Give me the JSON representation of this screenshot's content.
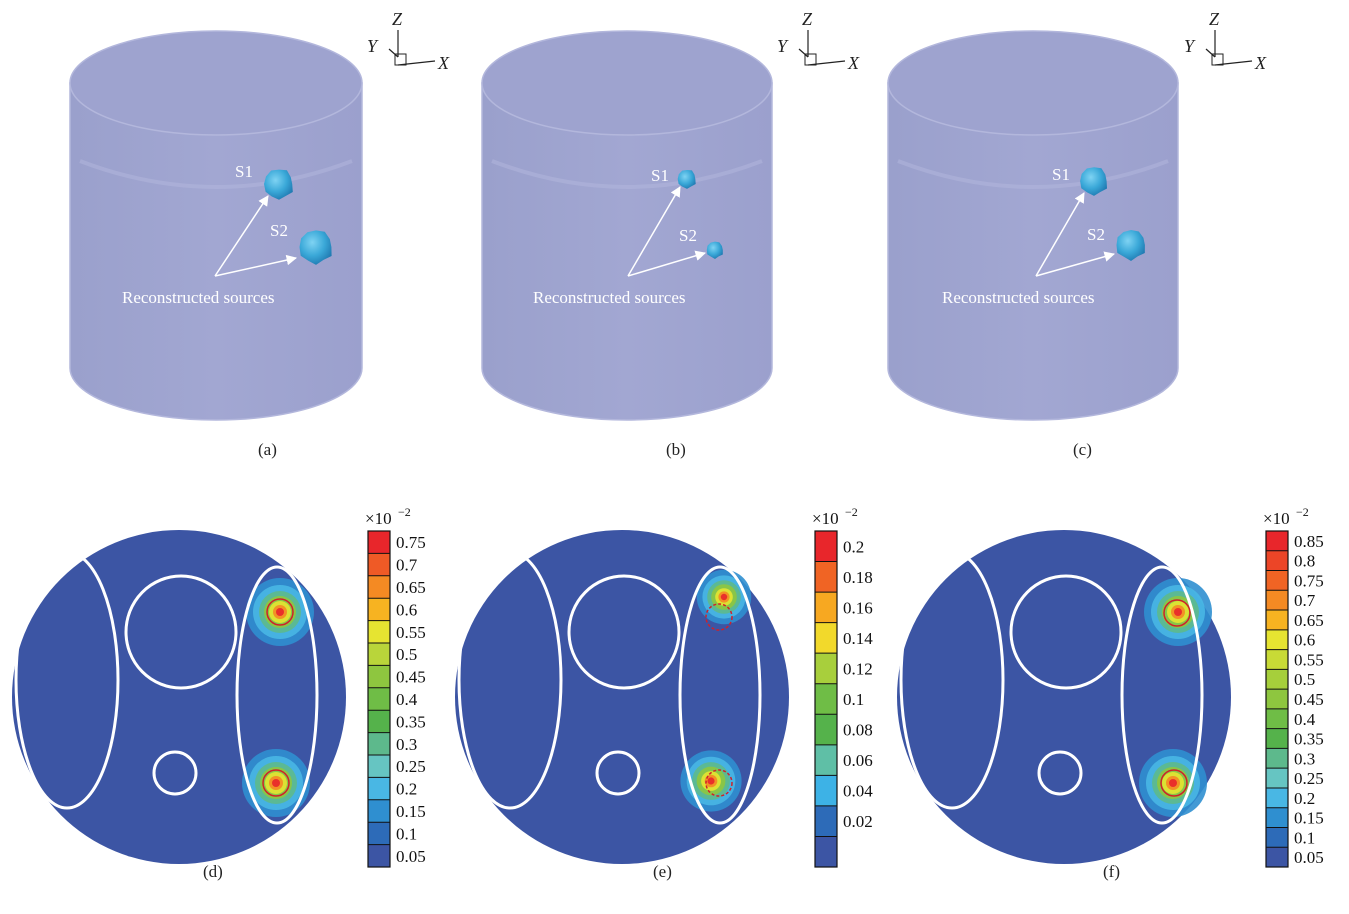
{
  "colors": {
    "cylinder_body": "#a2a7d2",
    "cylinder_edge": "#b3b7dc",
    "cylinder_top": "#9ea3cf",
    "source_blob": "#3aa8d8",
    "source_blob_dark": "#1f78b0",
    "slice_background": "#3c55a4",
    "contour_lines": "#ffffff",
    "true_source_circle": "#d0202a",
    "annotation": "#ffffff"
  },
  "axes_labels": {
    "x": "X",
    "y": "Y",
    "z": "Z"
  },
  "panels_3d": [
    {
      "caption": "(a)",
      "s1_label": "S1",
      "s2_label": "S2",
      "annotation": "Reconstructed sources"
    },
    {
      "caption": "(b)",
      "s1_label": "S1",
      "s2_label": "S2",
      "annotation": "Reconstructed sources"
    },
    {
      "caption": "(c)",
      "s1_label": "S1",
      "s2_label": "S2",
      "annotation": "Reconstructed sources"
    }
  ],
  "panels_2d": [
    {
      "caption": "(d)",
      "colorbar_multiplier": "×10",
      "colorbar_exponent": "−2",
      "colorbar_ticks": [
        "0.75",
        "0.7",
        "0.65",
        "0.6",
        "0.55",
        "0.5",
        "0.45",
        "0.4",
        "0.35",
        "0.3",
        "0.25",
        "0.2",
        "0.15",
        "0.1",
        "0.05"
      ],
      "colorbar_colors": [
        "#e8262b",
        "#ef5a26",
        "#f48a23",
        "#f7b321",
        "#e6e431",
        "#b9d53a",
        "#8ec63f",
        "#6fbd46",
        "#55b24b",
        "#5db98c",
        "#66c5c2",
        "#49b7e4",
        "#2f8fd0",
        "#2d6bb8",
        "#3c55a4"
      ]
    },
    {
      "caption": "(e)",
      "colorbar_multiplier": "×10",
      "colorbar_exponent": "−2",
      "colorbar_ticks": [
        "0.2",
        "0.18",
        "0.16",
        "0.14",
        "0.12",
        "0.1",
        "0.08",
        "0.06",
        "0.04",
        "0.02"
      ],
      "colorbar_colors": [
        "#e8262b",
        "#f06424",
        "#f7a821",
        "#f2d92b",
        "#a8cf3c",
        "#6fbd46",
        "#55b24b",
        "#5fbfa6",
        "#3db2e6",
        "#2d6bb8",
        "#3c55a4"
      ]
    },
    {
      "caption": "(f)",
      "colorbar_multiplier": "×10",
      "colorbar_exponent": "−2",
      "colorbar_ticks": [
        "0.85",
        "0.8",
        "0.75",
        "0.7",
        "0.65",
        "0.6",
        "0.55",
        "0.5",
        "0.45",
        "0.4",
        "0.35",
        "0.3",
        "0.25",
        "0.2",
        "0.15",
        "0.1",
        "0.05"
      ],
      "colorbar_colors": [
        "#e8262b",
        "#ec4527",
        "#f06424",
        "#f48a23",
        "#f7b321",
        "#e6e431",
        "#c8da36",
        "#a6cf3b",
        "#8ec63f",
        "#6fbd46",
        "#55b24b",
        "#5db98c",
        "#66c5c2",
        "#49b7e4",
        "#2f8fd0",
        "#2d6bb8",
        "#3c55a4"
      ]
    }
  ]
}
